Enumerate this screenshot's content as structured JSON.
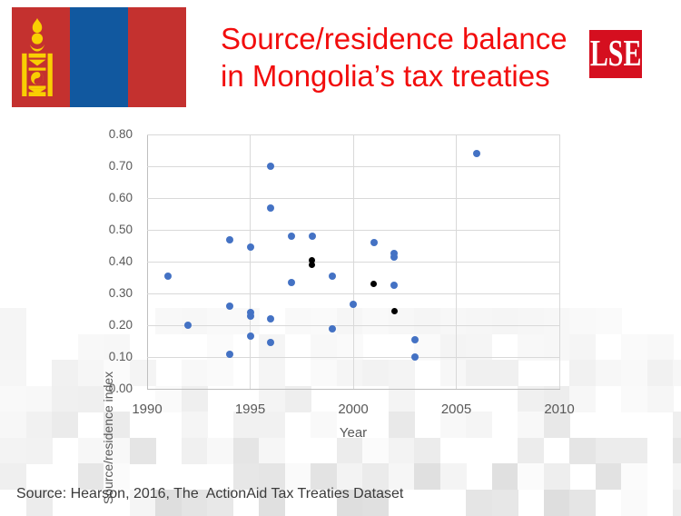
{
  "header": {
    "title_line1": "Source/residence balance",
    "title_line2": "in Mongolia’s tax treaties",
    "title_color": "#f20d0d",
    "lse_logo_text": "LSE",
    "lse_logo_color": "#d50f1f",
    "flag": {
      "name": "mongolia-flag",
      "red": "#c4312f",
      "blue": "#11589f",
      "yellow": "#f9cf02"
    }
  },
  "chart_data": {
    "type": "scatter",
    "title": "",
    "xlabel": "Year",
    "ylabel": "Source/residence index",
    "xlim": [
      1990,
      2010
    ],
    "ylim": [
      0.0,
      0.8
    ],
    "x_tick_labels": [
      "1990",
      "1995",
      "2000",
      "2005",
      "2010"
    ],
    "y_tick_labels": [
      "0.00",
      "0.10",
      "0.20",
      "0.30",
      "0.40",
      "0.50",
      "0.60",
      "0.70",
      "0.80"
    ],
    "grid": true,
    "legend": "none",
    "series": [
      {
        "name": "blue-points",
        "color": "#4472c4",
        "marker_size": 8,
        "points": [
          [
            1991,
            0.355
          ],
          [
            1992,
            0.2
          ],
          [
            1994,
            0.47
          ],
          [
            1994,
            0.26
          ],
          [
            1994,
            0.11
          ],
          [
            1995,
            0.445
          ],
          [
            1995,
            0.24
          ],
          [
            1995,
            0.23
          ],
          [
            1995,
            0.165
          ],
          [
            1996,
            0.7
          ],
          [
            1996,
            0.57
          ],
          [
            1996,
            0.22
          ],
          [
            1996,
            0.145
          ],
          [
            1997,
            0.48
          ],
          [
            1997,
            0.335
          ],
          [
            1998,
            0.48
          ],
          [
            1999,
            0.355
          ],
          [
            1999,
            0.19
          ],
          [
            2000,
            0.265
          ],
          [
            2001,
            0.46
          ],
          [
            2002,
            0.425
          ],
          [
            2002,
            0.415
          ],
          [
            2002,
            0.325
          ],
          [
            2003,
            0.155
          ],
          [
            2003,
            0.1
          ],
          [
            2006,
            0.74
          ]
        ]
      },
      {
        "name": "black-points",
        "color": "#000000",
        "marker_size": 7,
        "points": [
          [
            1998,
            0.405
          ],
          [
            1998,
            0.39
          ],
          [
            2001,
            0.33
          ],
          [
            2002,
            0.245
          ]
        ]
      }
    ]
  },
  "footer": {
    "source_text": "Source: Hearson, 2016, The  ActionAid Tax Treaties Dataset"
  }
}
